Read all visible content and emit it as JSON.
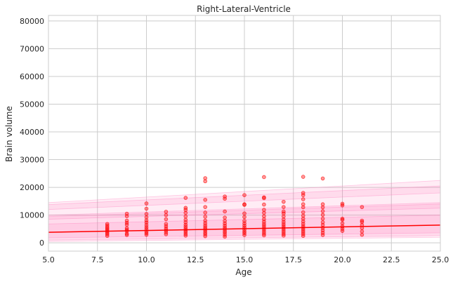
{
  "chart_data": {
    "type": "scatter",
    "title": "Right-Lateral-Ventricle",
    "xlabel": "Age",
    "ylabel": "Brain volume",
    "xlim": [
      5,
      25
    ],
    "ylim": [
      -3000,
      82000
    ],
    "xticks": [
      "5.0",
      "7.5",
      "10.0",
      "12.5",
      "15.0",
      "17.5",
      "20.0",
      "22.5",
      "25.0"
    ],
    "yticks": [
      "0",
      "10000",
      "20000",
      "30000",
      "40000",
      "50000",
      "60000",
      "70000",
      "80000"
    ],
    "grid": true,
    "colors": {
      "points": "#ff0000",
      "trend": "#ff0000",
      "band": "#ff69b4",
      "grid": "#cccccc",
      "frame": "#cccccc"
    },
    "trend_line": {
      "x": [
        5,
        25
      ],
      "y": [
        3800,
        6400
      ]
    },
    "centile_bands": [
      {
        "x": [
          5,
          25
        ],
        "lower": [
          1800,
          3600
        ],
        "upper": [
          6800,
          10000
        ]
      },
      {
        "x": [
          5,
          25
        ],
        "lower": [
          1000,
          2600
        ],
        "upper": [
          9500,
          14000
        ]
      },
      {
        "x": [
          5,
          25
        ],
        "lower": [
          500,
          2000
        ],
        "upper": [
          10000,
          14500
        ]
      },
      {
        "x": [
          5,
          25
        ],
        "lower": [
          8500,
          12500
        ],
        "upper": [
          13800,
          20500
        ]
      },
      {
        "x": [
          5,
          25
        ],
        "lower": [
          12000,
          18000
        ],
        "upper": [
          14500,
          22500
        ]
      }
    ],
    "points": [
      [
        8,
        2500
      ],
      [
        8,
        3100
      ],
      [
        8,
        3600
      ],
      [
        8,
        4100
      ],
      [
        8,
        4600
      ],
      [
        8,
        5100
      ],
      [
        8,
        5600
      ],
      [
        8,
        6200
      ],
      [
        8,
        6800
      ],
      [
        9,
        2800
      ],
      [
        9,
        3300
      ],
      [
        9,
        4200
      ],
      [
        9,
        4700
      ],
      [
        9,
        5300
      ],
      [
        9,
        6500
      ],
      [
        9,
        7200
      ],
      [
        9,
        8000
      ],
      [
        9,
        9600
      ],
      [
        9,
        10500
      ],
      [
        10,
        2900
      ],
      [
        10,
        3500
      ],
      [
        10,
        4100
      ],
      [
        10,
        4900
      ],
      [
        10,
        5600
      ],
      [
        10,
        6400
      ],
      [
        10,
        7300
      ],
      [
        10,
        8100
      ],
      [
        10,
        9200
      ],
      [
        10,
        10400
      ],
      [
        10,
        12300
      ],
      [
        10,
        14200
      ],
      [
        11,
        3100
      ],
      [
        11,
        3800
      ],
      [
        11,
        4500
      ],
      [
        11,
        5200
      ],
      [
        11,
        6000
      ],
      [
        11,
        6800
      ],
      [
        11,
        8500
      ],
      [
        11,
        10000
      ],
      [
        11,
        11200
      ],
      [
        12,
        2600
      ],
      [
        12,
        3200
      ],
      [
        12,
        3900
      ],
      [
        12,
        4500
      ],
      [
        12,
        5100
      ],
      [
        12,
        5800
      ],
      [
        12,
        6500
      ],
      [
        12,
        7400
      ],
      [
        12,
        8300
      ],
      [
        12,
        9500
      ],
      [
        12,
        10800
      ],
      [
        12,
        11900
      ],
      [
        12,
        12600
      ],
      [
        12,
        16200
      ],
      [
        13,
        2400
      ],
      [
        13,
        3100
      ],
      [
        13,
        3700
      ],
      [
        13,
        4400
      ],
      [
        13,
        5000
      ],
      [
        13,
        5600
      ],
      [
        13,
        6300
      ],
      [
        13,
        7100
      ],
      [
        13,
        8000
      ],
      [
        13,
        9400
      ],
      [
        13,
        10900
      ],
      [
        13,
        12900
      ],
      [
        13,
        15500
      ],
      [
        13,
        22200
      ],
      [
        13,
        23300
      ],
      [
        14,
        2200
      ],
      [
        14,
        2900
      ],
      [
        14,
        3600
      ],
      [
        14,
        4200
      ],
      [
        14,
        4900
      ],
      [
        14,
        5500
      ],
      [
        14,
        6200
      ],
      [
        14,
        7000
      ],
      [
        14,
        7900
      ],
      [
        14,
        9100
      ],
      [
        14,
        11300
      ],
      [
        14,
        15900
      ],
      [
        14,
        16700
      ],
      [
        15,
        2800
      ],
      [
        15,
        3500
      ],
      [
        15,
        4100
      ],
      [
        15,
        4800
      ],
      [
        15,
        5500
      ],
      [
        15,
        6200
      ],
      [
        15,
        7000
      ],
      [
        15,
        7900
      ],
      [
        15,
        9300
      ],
      [
        15,
        10600
      ],
      [
        15,
        13700
      ],
      [
        15,
        13900
      ],
      [
        15,
        17200
      ],
      [
        16,
        2700
      ],
      [
        16,
        3300
      ],
      [
        16,
        4000
      ],
      [
        16,
        4700
      ],
      [
        16,
        5400
      ],
      [
        16,
        6100
      ],
      [
        16,
        6800
      ],
      [
        16,
        7600
      ],
      [
        16,
        8500
      ],
      [
        16,
        9600
      ],
      [
        16,
        10800
      ],
      [
        16,
        11900
      ],
      [
        16,
        13800
      ],
      [
        16,
        16100
      ],
      [
        16,
        16400
      ],
      [
        16,
        23700
      ],
      [
        17,
        2600
      ],
      [
        17,
        3200
      ],
      [
        17,
        3900
      ],
      [
        17,
        4600
      ],
      [
        17,
        5300
      ],
      [
        17,
        6000
      ],
      [
        17,
        6700
      ],
      [
        17,
        7500
      ],
      [
        17,
        8400
      ],
      [
        17,
        9500
      ],
      [
        17,
        10600
      ],
      [
        17,
        11300
      ],
      [
        17,
        12900
      ],
      [
        17,
        14800
      ],
      [
        18,
        2500
      ],
      [
        18,
        3200
      ],
      [
        18,
        3900
      ],
      [
        18,
        4600
      ],
      [
        18,
        5300
      ],
      [
        18,
        6000
      ],
      [
        18,
        6800
      ],
      [
        18,
        7700
      ],
      [
        18,
        8700
      ],
      [
        18,
        9800
      ],
      [
        18,
        11000
      ],
      [
        18,
        12800
      ],
      [
        18,
        13900
      ],
      [
        18,
        15700
      ],
      [
        18,
        17200
      ],
      [
        18,
        18000
      ],
      [
        18,
        23800
      ],
      [
        19,
        2800
      ],
      [
        19,
        3600
      ],
      [
        19,
        4500
      ],
      [
        19,
        5400
      ],
      [
        19,
        6400
      ],
      [
        19,
        7400
      ],
      [
        19,
        8700
      ],
      [
        19,
        10100
      ],
      [
        19,
        11400
      ],
      [
        19,
        12800
      ],
      [
        19,
        13900
      ],
      [
        19,
        23200
      ],
      [
        20,
        4300
      ],
      [
        20,
        5100
      ],
      [
        20,
        5900
      ],
      [
        20,
        7000
      ],
      [
        20,
        8300
      ],
      [
        20,
        8700
      ],
      [
        20,
        13500
      ],
      [
        20,
        14100
      ],
      [
        21,
        2900
      ],
      [
        21,
        4100
      ],
      [
        21,
        5300
      ],
      [
        21,
        6400
      ],
      [
        21,
        7500
      ],
      [
        21,
        8000
      ],
      [
        21,
        12900
      ]
    ]
  }
}
